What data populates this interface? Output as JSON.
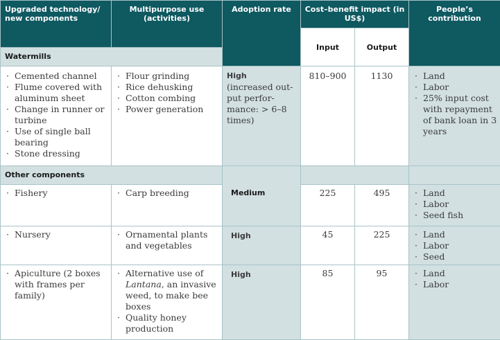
{
  "headers": {
    "tech": "Upgraded technology/ new components",
    "use": "Multipurpose use (activities)",
    "adoption": "Adoption rate",
    "cost": "Cost–benefit impact (in US$)",
    "input": "Input",
    "output": "Output",
    "contribution": "People’s contribution"
  },
  "sections": {
    "watermills": "Watermills",
    "other": "Other components"
  },
  "rows": {
    "watermills": {
      "tech": [
        "Cemented channel",
        "Flume covered with aluminum sheet",
        "Change in runner or turbine",
        "Use of single ball bearing",
        "Stone dressing"
      ],
      "use": [
        "Flour grinding",
        "Rice dehusking",
        "Cotton combing",
        "Power generation"
      ],
      "adoption_level": "High",
      "adoption_note": "(increased out-put perfor-mance: > 6–8 times)",
      "input": "810–900",
      "output": "1130",
      "contribution": [
        "Land",
        "Labor",
        "25% input cost with repayment of bank loan in 3 years"
      ]
    },
    "fishery": {
      "tech": [
        "Fishery"
      ],
      "use": [
        "Carp breeding"
      ],
      "adoption_level": "Medium",
      "input": "225",
      "output": "495",
      "contribution": [
        "Land",
        "Labor",
        "Seed fish"
      ]
    },
    "nursery": {
      "tech": [
        "Nursery"
      ],
      "use": [
        "Ornamental plants and vegetables"
      ],
      "adoption_level": "High",
      "input": "45",
      "output": "225",
      "contribution": [
        "Land",
        "Labor",
        "Seed"
      ]
    },
    "apiculture": {
      "tech": [
        "Apiculture (2 boxes with frames per family)"
      ],
      "use_1_pre": "Alternative use of ",
      "use_1_em": "Lantana",
      "use_1_post": ", an invasive weed, to make bee boxes",
      "use_2": "Quality honey production",
      "adoption_level": "High",
      "input": "85",
      "output": "95",
      "contribution": [
        "Land",
        "Labor"
      ]
    }
  }
}
